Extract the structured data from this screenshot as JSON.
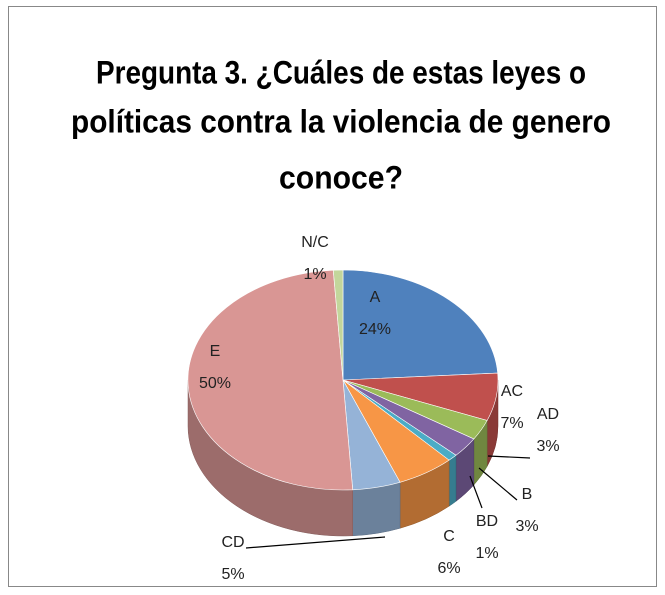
{
  "chart_data": {
    "type": "pie3d",
    "title": [
      "Pregunta 3. ¿Cuáles de estas leyes o",
      "políticas contra la violencia de genero",
      "conoce?"
    ],
    "categories": [
      "A",
      "AC",
      "AD",
      "B",
      "BD",
      "C",
      "CD",
      "E",
      "N/C"
    ],
    "values": [
      24,
      7,
      3,
      3,
      1,
      6,
      5,
      50,
      1
    ],
    "value_labels": [
      "24%",
      "7%",
      "3%",
      "3%",
      "1%",
      "6%",
      "5%",
      "50%",
      "1%"
    ],
    "colors": [
      "#4F81BD",
      "#C0504D",
      "#9BBB59",
      "#8064A2",
      "#4BACC6",
      "#F79646",
      "#95B3D7",
      "#D99694",
      "#C3D69B"
    ]
  }
}
